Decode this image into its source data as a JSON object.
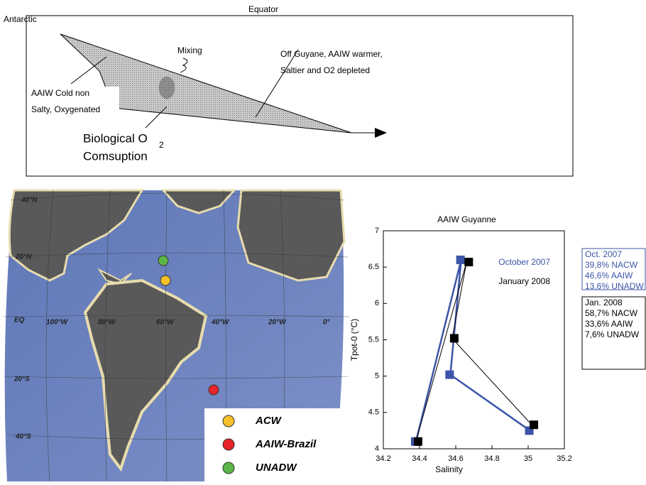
{
  "diagram": {
    "left_label": "Antarctic",
    "top_label": "Equator",
    "mixing": "Mixing",
    "right_note": [
      "Off Guyane, AAIW warmer,",
      "Saltier and O2 depleted"
    ],
    "left_note": [
      "AAIW Cold non",
      "Salty, Oxygenated"
    ],
    "bio": "Biological O",
    "bio_sub": "2",
    "bio_line2": "Comsuption"
  },
  "map": {
    "lat_labels": [
      "40°N",
      "20°N",
      "EQ",
      "20°S",
      "40°S"
    ],
    "lon_labels": [
      "100°W",
      "80°W",
      "60°W",
      "40°W",
      "20°W",
      "0°"
    ],
    "legend": [
      {
        "name": "ACW",
        "color": "#f5c02a"
      },
      {
        "name": "AAIW-Brazil",
        "color": "#e8232a"
      },
      {
        "name": "UNADW",
        "color": "#5cb547"
      }
    ]
  },
  "chart_data": {
    "type": "line",
    "title": "AAIW Guyanne",
    "x_label": "Salinity",
    "y_label": "Tpot-0 (°C)",
    "xlim": [
      34.2,
      35.2
    ],
    "ylim": [
      4,
      7
    ],
    "xticks": [
      34.2,
      34.4,
      34.6,
      34.8,
      35,
      35.2
    ],
    "yticks": [
      4,
      4.5,
      5,
      5.5,
      6,
      6.5,
      7
    ],
    "series": [
      {
        "name": "October 2007",
        "color": "#3b55a8",
        "x": [
          34.38,
          34.63,
          34.57,
          35.01
        ],
        "values": [
          4.1,
          6.6,
          5.02,
          4.25
        ]
      },
      {
        "name": "January 2008",
        "color": "#000000",
        "x": [
          34.38,
          34.66,
          34.58,
          35.02
        ],
        "values": [
          4.1,
          6.57,
          5.52,
          4.33
        ]
      }
    ],
    "notes": [
      [
        "Oct. 2007",
        "39,8% NACW",
        "46,6% AAIW",
        "13,6% UNADW"
      ],
      [
        "Jan. 2008",
        "58,7% NACW",
        "33,6% AAIW",
        "7,6% UNADW"
      ]
    ]
  }
}
